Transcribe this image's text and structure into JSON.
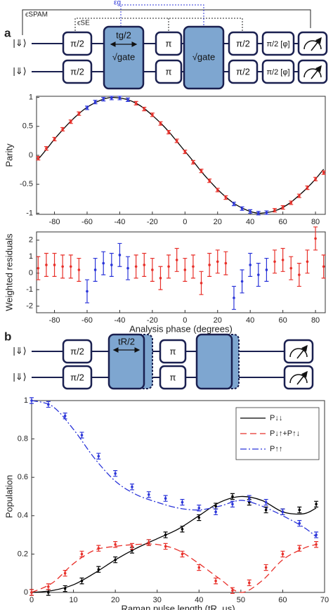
{
  "panel_a": {
    "label": "a",
    "circuit": {
      "inputs": [
        "|⇓⟩",
        "|⇓⟩"
      ],
      "top": [
        "π/2",
        "π",
        "π/2",
        "π/2 [φ]"
      ],
      "bottom": [
        "π/2",
        "π",
        "π/2",
        "π/2 [φ]"
      ],
      "gate_label": "tg/2",
      "gate_top": "√gate",
      "gate_second": "√gate",
      "brackets": [
        "ϵSPAM",
        "ϵSE",
        "εg"
      ]
    }
  },
  "panel_b": {
    "label": "b",
    "circuit": {
      "inputs": [
        "|⇓⟩",
        "|⇓⟩"
      ],
      "top": [
        "π/2",
        "π"
      ],
      "bottom": [
        "π/2",
        "π"
      ],
      "gate_label": "tR/2"
    }
  },
  "chart_data": [
    {
      "type": "line",
      "ylabel": "Parity",
      "xlim": [
        -91,
        86
      ],
      "ylim": [
        -1.02,
        1.02
      ],
      "xticks": [
        -80,
        -60,
        -40,
        -20,
        0,
        20,
        40,
        60,
        80
      ],
      "yticks": [
        -1,
        -0.5,
        0,
        0.5,
        1
      ],
      "series": [
        {
          "mode": "line",
          "color": "#000000",
          "x": [
            -90,
            -85,
            -80,
            -75,
            -70,
            -65,
            -60,
            -55,
            -50,
            -45,
            -40,
            -35,
            -30,
            -25,
            -20,
            -15,
            -10,
            -5,
            0,
            5,
            10,
            15,
            20,
            25,
            30,
            35,
            40,
            45,
            50,
            55,
            60,
            65,
            70,
            75,
            80,
            85
          ],
          "values": [
            -0.07,
            0.1,
            0.28,
            0.44,
            0.59,
            0.72,
            0.83,
            0.91,
            0.97,
            1.0,
            0.99,
            0.96,
            0.9,
            0.81,
            0.69,
            0.56,
            0.41,
            0.24,
            0.07,
            -0.1,
            -0.28,
            -0.44,
            -0.59,
            -0.72,
            -0.83,
            -0.91,
            -0.97,
            -1.0,
            -0.99,
            -0.96,
            -0.9,
            -0.81,
            -0.69,
            -0.56,
            -0.41,
            -0.24
          ]
        },
        {
          "mode": "errorbar",
          "color": "#e8302a",
          "x": [
            -90,
            -85,
            -80,
            -75,
            -70,
            -65,
            -30,
            -25,
            -20,
            -15,
            -10,
            -5,
            0,
            5,
            10,
            15,
            20,
            25,
            55,
            60,
            65,
            70,
            75,
            80,
            85
          ],
          "values": [
            -0.05,
            0.12,
            0.28,
            0.45,
            0.58,
            0.72,
            0.9,
            0.8,
            0.7,
            0.55,
            0.4,
            0.25,
            0.06,
            -0.12,
            -0.27,
            -0.44,
            -0.6,
            -0.73,
            -0.95,
            -0.9,
            -0.82,
            -0.7,
            -0.56,
            -0.41,
            -0.3
          ],
          "errors": [
            0.03,
            0.03,
            0.03,
            0.03,
            0.03,
            0.03,
            0.03,
            0.03,
            0.03,
            0.03,
            0.03,
            0.03,
            0.03,
            0.03,
            0.03,
            0.03,
            0.03,
            0.03,
            0.03,
            0.03,
            0.03,
            0.03,
            0.03,
            0.03,
            0.03
          ]
        },
        {
          "mode": "errorbar",
          "color": "#2b35d9",
          "x": [
            -60,
            -55,
            -50,
            -45,
            -40,
            -35,
            30,
            35,
            40,
            45,
            50
          ],
          "values": [
            0.82,
            0.92,
            0.97,
            0.99,
            0.99,
            0.96,
            -0.84,
            -0.92,
            -0.97,
            -1.0,
            -0.99
          ],
          "errors": [
            0.03,
            0.03,
            0.03,
            0.03,
            0.03,
            0.03,
            0.03,
            0.03,
            0.03,
            0.03,
            0.03
          ]
        }
      ]
    },
    {
      "type": "line",
      "ylabel": "Weighted residuals",
      "xlabel": "Analysis phase (degrees)",
      "xlim": [
        -91,
        86
      ],
      "ylim": [
        -2.4,
        2.5
      ],
      "xticks": [
        -80,
        -60,
        -40,
        -20,
        0,
        20,
        40,
        60,
        80
      ],
      "yticks": [
        -2,
        -1,
        0,
        1,
        2
      ],
      "series": [
        {
          "mode": "errorbar",
          "color": "#e8302a",
          "x": [
            -90,
            -85,
            -80,
            -75,
            -70,
            -65,
            -30,
            -25,
            -20,
            -15,
            -10,
            -5,
            0,
            5,
            10,
            15,
            20,
            25,
            55,
            60,
            65,
            70,
            75,
            80,
            85
          ],
          "values": [
            0.3,
            0.5,
            0.5,
            0.4,
            0.4,
            0.2,
            0.4,
            0.5,
            0.2,
            -0.3,
            0.4,
            0.8,
            0.2,
            0.4,
            -0.6,
            0.5,
            0.7,
            0.6,
            0.7,
            0.8,
            0.3,
            -0.1,
            0.7,
            2.1,
            0.4
          ],
          "errors": [
            0.7,
            0.7,
            0.7,
            0.7,
            0.7,
            0.7,
            0.7,
            0.7,
            0.7,
            0.7,
            0.7,
            0.7,
            0.7,
            0.7,
            0.7,
            0.7,
            0.7,
            0.7,
            0.7,
            0.7,
            0.7,
            0.7,
            0.7,
            0.7,
            0.7
          ]
        },
        {
          "mode": "errorbar",
          "color": "#2b35d9",
          "x": [
            -60,
            -55,
            -50,
            -45,
            -40,
            -35,
            30,
            35,
            40,
            45,
            50
          ],
          "values": [
            -1.1,
            0.2,
            0.6,
            0.5,
            1.1,
            0.3,
            -1.5,
            -0.5,
            0.5,
            -0.1,
            0.2
          ],
          "errors": [
            0.7,
            0.7,
            0.7,
            0.7,
            0.7,
            0.7,
            0.7,
            0.7,
            0.7,
            0.7,
            0.7
          ]
        }
      ]
    },
    {
      "type": "line",
      "ylabel": "Population",
      "xlabel": "Raman pulse length (tR, μs)",
      "xlim": [
        0,
        70
      ],
      "ylim": [
        0,
        1
      ],
      "xticks": [
        0,
        10,
        20,
        30,
        40,
        50,
        60,
        70
      ],
      "yticks": [
        0,
        0.2,
        0.4,
        0.6,
        0.8,
        1
      ],
      "legend": "upper right",
      "series": [
        {
          "name": "P↓↓",
          "mode": "line",
          "color": "#000000",
          "dash": "none",
          "x": [
            0,
            5,
            10,
            15,
            20,
            25,
            30,
            35,
            40,
            45,
            50,
            55,
            60,
            65,
            68
          ],
          "values": [
            0,
            0.01,
            0.04,
            0.1,
            0.17,
            0.23,
            0.28,
            0.33,
            0.4,
            0.47,
            0.5,
            0.48,
            0.42,
            0.41,
            0.44
          ]
        },
        {
          "name": "P↓↑+P↑↓",
          "mode": "line",
          "color": "#e8302a",
          "dash": "9,5",
          "x": [
            0,
            5,
            10,
            15,
            20,
            25,
            30,
            35,
            40,
            45,
            50,
            55,
            60,
            65,
            68
          ],
          "values": [
            0,
            0.05,
            0.15,
            0.22,
            0.24,
            0.25,
            0.25,
            0.22,
            0.15,
            0.07,
            0,
            0.06,
            0.17,
            0.23,
            0.25
          ]
        },
        {
          "name": "P↑↑",
          "mode": "line",
          "color": "#2b35d9",
          "dash": "9,3,2,3",
          "x": [
            0,
            5,
            10,
            15,
            20,
            25,
            30,
            35,
            40,
            45,
            50,
            55,
            60,
            65,
            68
          ],
          "values": [
            1,
            0.97,
            0.85,
            0.7,
            0.58,
            0.51,
            0.47,
            0.44,
            0.43,
            0.45,
            0.48,
            0.45,
            0.4,
            0.34,
            0.29
          ]
        },
        {
          "mode": "errorbar",
          "color": "#000000",
          "x": [
            0,
            4,
            8,
            12,
            16,
            20,
            24,
            28,
            32,
            36,
            40,
            44,
            48,
            52,
            56,
            60,
            64,
            68
          ],
          "values": [
            0,
            0,
            0.02,
            0.06,
            0.12,
            0.17,
            0.22,
            0.26,
            0.3,
            0.33,
            0.39,
            0.45,
            0.5,
            0.47,
            0.43,
            0.42,
            0.43,
            0.46
          ],
          "errors": [
            0.015,
            0.015,
            0.015,
            0.015,
            0.015,
            0.015,
            0.015,
            0.015,
            0.015,
            0.015,
            0.015,
            0.015,
            0.015,
            0.015,
            0.015,
            0.015,
            0.015,
            0.015
          ]
        },
        {
          "mode": "errorbar",
          "color": "#e8302a",
          "x": [
            0,
            4,
            8,
            12,
            16,
            20,
            24,
            28,
            32,
            36,
            40,
            44,
            48,
            52,
            56,
            60,
            64,
            68
          ],
          "values": [
            0,
            0.03,
            0.1,
            0.2,
            0.23,
            0.25,
            0.24,
            0.26,
            0.24,
            0.2,
            0.13,
            0.06,
            0.01,
            0.05,
            0.13,
            0.2,
            0.23,
            0.25
          ],
          "errors": [
            0.015,
            0.015,
            0.015,
            0.015,
            0.015,
            0.015,
            0.015,
            0.015,
            0.015,
            0.015,
            0.015,
            0.015,
            0.015,
            0.015,
            0.015,
            0.015,
            0.015,
            0.015
          ]
        },
        {
          "mode": "errorbar",
          "color": "#2b35d9",
          "x": [
            0,
            4,
            8,
            12,
            16,
            20,
            24,
            28,
            32,
            36,
            40,
            44,
            48,
            52,
            56,
            60,
            64,
            68
          ],
          "values": [
            1.0,
            0.98,
            0.92,
            0.82,
            0.71,
            0.62,
            0.55,
            0.51,
            0.49,
            0.47,
            0.44,
            0.42,
            0.46,
            0.49,
            0.47,
            0.42,
            0.36,
            0.3
          ],
          "errors": [
            0.015,
            0.015,
            0.015,
            0.015,
            0.015,
            0.015,
            0.015,
            0.015,
            0.015,
            0.015,
            0.015,
            0.015,
            0.015,
            0.015,
            0.015,
            0.015,
            0.015,
            0.015
          ]
        }
      ]
    }
  ]
}
